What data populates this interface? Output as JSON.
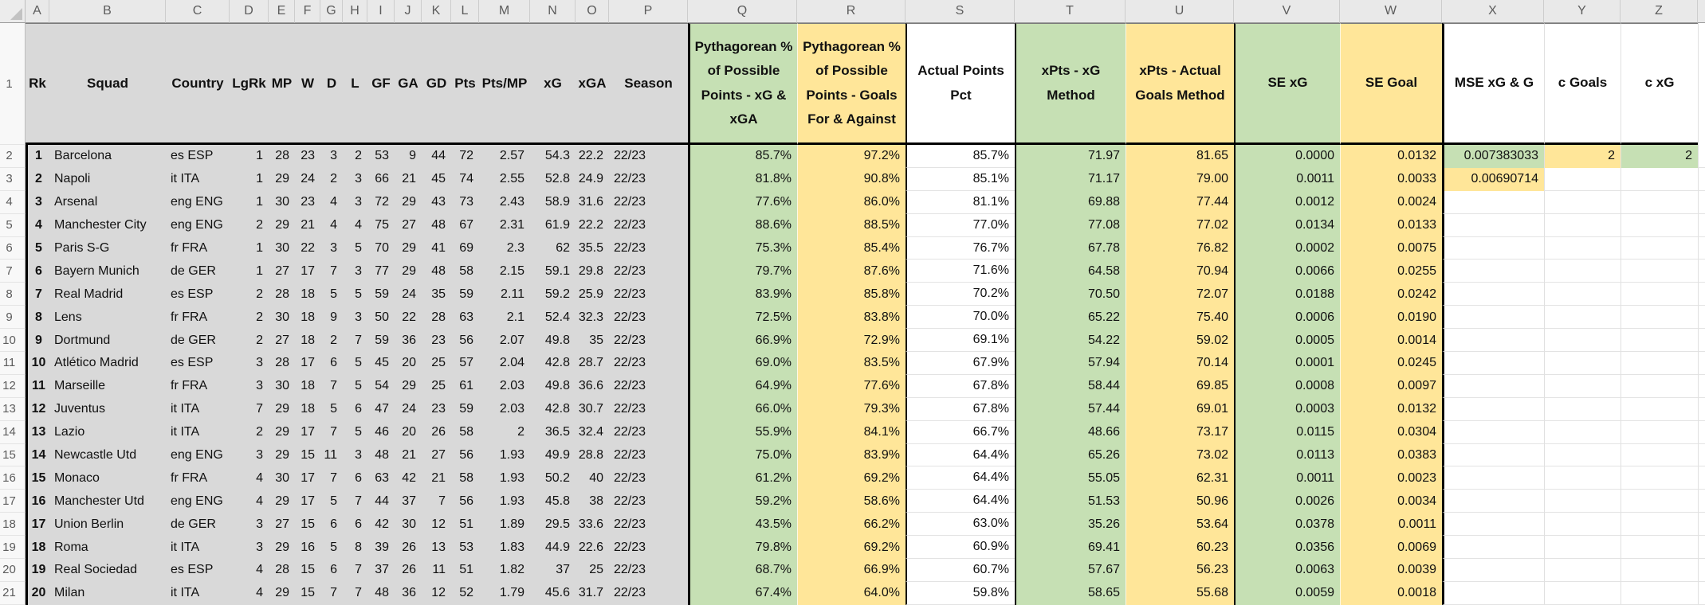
{
  "palette": {
    "green": "#c6e0b4",
    "yellow": "#ffe699",
    "gray": "#d9d9d9",
    "white": "#ffffff",
    "grid_black": "#000000"
  },
  "icons": {
    "select_all": "select-all-triangle"
  },
  "sheet": {
    "row_numbers": [
      "1",
      "2",
      "3",
      "4",
      "5",
      "6",
      "7",
      "8",
      "9",
      "10",
      "11",
      "12",
      "13",
      "14",
      "15",
      "16",
      "17",
      "18",
      "19",
      "20",
      "21"
    ],
    "columns": [
      {
        "letter": "A",
        "header": "Rk"
      },
      {
        "letter": "B",
        "header": "Squad"
      },
      {
        "letter": "C",
        "header": "Country"
      },
      {
        "letter": "D",
        "header": "LgRk"
      },
      {
        "letter": "E",
        "header": "MP"
      },
      {
        "letter": "F",
        "header": "W"
      },
      {
        "letter": "G",
        "header": "D"
      },
      {
        "letter": "H",
        "header": "L"
      },
      {
        "letter": "I",
        "header": "GF"
      },
      {
        "letter": "J",
        "header": "GA"
      },
      {
        "letter": "K",
        "header": "GD"
      },
      {
        "letter": "L",
        "header": "Pts"
      },
      {
        "letter": "M",
        "header": "Pts/MP"
      },
      {
        "letter": "N",
        "header": "xG"
      },
      {
        "letter": "O",
        "header": "xGA"
      },
      {
        "letter": "P",
        "header": "Season"
      },
      {
        "letter": "Q",
        "header": "Pythagorean % of Possible Points - xG & xGA"
      },
      {
        "letter": "R",
        "header": "Pythagorean % of Possible Points - Goals For & Against"
      },
      {
        "letter": "S",
        "header": "Actual Points Pct"
      },
      {
        "letter": "T",
        "header": "xPts - xG Method"
      },
      {
        "letter": "U",
        "header": "xPts - Actual Goals Method"
      },
      {
        "letter": "V",
        "header": "SE xG"
      },
      {
        "letter": "W",
        "header": "SE Goal"
      },
      {
        "letter": "X",
        "header": "MSE xG & G"
      },
      {
        "letter": "Y",
        "header": "c Goals"
      },
      {
        "letter": "Z",
        "header": "c xG"
      }
    ]
  },
  "rows": [
    {
      "rk": "1",
      "squad": "Barcelona",
      "country": "es ESP",
      "lgrk": "1",
      "mp": "28",
      "w": "23",
      "d": "3",
      "l": "2",
      "gf": "53",
      "ga": "9",
      "gd": "44",
      "pts": "72",
      "pts_mp": "2.57",
      "xg": "54.3",
      "xga": "22.2",
      "season": "22/23",
      "pyth_xg": "85.7%",
      "pyth_goals": "97.2%",
      "actual_pct": "85.7%",
      "xpts_xg": "71.97",
      "xpts_goals": "81.65",
      "se_xg": "0.0000",
      "se_goal": "0.0132",
      "mse": "0.007383033",
      "c_goals": "2",
      "c_xg": "2",
      "fills": {
        "mse": "green",
        "c_goals": "yellow",
        "c_xg": "green"
      }
    },
    {
      "rk": "2",
      "squad": "Napoli",
      "country": "it ITA",
      "lgrk": "1",
      "mp": "29",
      "w": "24",
      "d": "2",
      "l": "3",
      "gf": "66",
      "ga": "21",
      "gd": "45",
      "pts": "74",
      "pts_mp": "2.55",
      "xg": "52.8",
      "xga": "24.9",
      "season": "22/23",
      "pyth_xg": "81.8%",
      "pyth_goals": "90.8%",
      "actual_pct": "85.1%",
      "xpts_xg": "71.17",
      "xpts_goals": "79.00",
      "se_xg": "0.0011",
      "se_goal": "0.0033",
      "mse": "0.00690714",
      "c_goals": "",
      "c_xg": "",
      "fills": {
        "mse": "yellow"
      }
    },
    {
      "rk": "3",
      "squad": "Arsenal",
      "country": "eng ENG",
      "lgrk": "1",
      "mp": "30",
      "w": "23",
      "d": "4",
      "l": "3",
      "gf": "72",
      "ga": "29",
      "gd": "43",
      "pts": "73",
      "pts_mp": "2.43",
      "xg": "58.9",
      "xga": "31.6",
      "season": "22/23",
      "pyth_xg": "77.6%",
      "pyth_goals": "86.0%",
      "actual_pct": "81.1%",
      "xpts_xg": "69.88",
      "xpts_goals": "77.44",
      "se_xg": "0.0012",
      "se_goal": "0.0024",
      "mse": "",
      "c_goals": "",
      "c_xg": ""
    },
    {
      "rk": "4",
      "squad": "Manchester City",
      "country": "eng ENG",
      "lgrk": "2",
      "mp": "29",
      "w": "21",
      "d": "4",
      "l": "4",
      "gf": "75",
      "ga": "27",
      "gd": "48",
      "pts": "67",
      "pts_mp": "2.31",
      "xg": "61.9",
      "xga": "22.2",
      "season": "22/23",
      "pyth_xg": "88.6%",
      "pyth_goals": "88.5%",
      "actual_pct": "77.0%",
      "xpts_xg": "77.08",
      "xpts_goals": "77.02",
      "se_xg": "0.0134",
      "se_goal": "0.0133",
      "mse": "",
      "c_goals": "",
      "c_xg": ""
    },
    {
      "rk": "5",
      "squad": "Paris S-G",
      "country": "fr FRA",
      "lgrk": "1",
      "mp": "30",
      "w": "22",
      "d": "3",
      "l": "5",
      "gf": "70",
      "ga": "29",
      "gd": "41",
      "pts": "69",
      "pts_mp": "2.3",
      "xg": "62",
      "xga": "35.5",
      "season": "22/23",
      "pyth_xg": "75.3%",
      "pyth_goals": "85.4%",
      "actual_pct": "76.7%",
      "xpts_xg": "67.78",
      "xpts_goals": "76.82",
      "se_xg": "0.0002",
      "se_goal": "0.0075",
      "mse": "",
      "c_goals": "",
      "c_xg": ""
    },
    {
      "rk": "6",
      "squad": "Bayern Munich",
      "country": "de GER",
      "lgrk": "1",
      "mp": "27",
      "w": "17",
      "d": "7",
      "l": "3",
      "gf": "77",
      "ga": "29",
      "gd": "48",
      "pts": "58",
      "pts_mp": "2.15",
      "xg": "59.1",
      "xga": "29.8",
      "season": "22/23",
      "pyth_xg": "79.7%",
      "pyth_goals": "87.6%",
      "actual_pct": "71.6%",
      "xpts_xg": "64.58",
      "xpts_goals": "70.94",
      "se_xg": "0.0066",
      "se_goal": "0.0255",
      "mse": "",
      "c_goals": "",
      "c_xg": ""
    },
    {
      "rk": "7",
      "squad": "Real Madrid",
      "country": "es ESP",
      "lgrk": "2",
      "mp": "28",
      "w": "18",
      "d": "5",
      "l": "5",
      "gf": "59",
      "ga": "24",
      "gd": "35",
      "pts": "59",
      "pts_mp": "2.11",
      "xg": "59.2",
      "xga": "25.9",
      "season": "22/23",
      "pyth_xg": "83.9%",
      "pyth_goals": "85.8%",
      "actual_pct": "70.2%",
      "xpts_xg": "70.50",
      "xpts_goals": "72.07",
      "se_xg": "0.0188",
      "se_goal": "0.0242",
      "mse": "",
      "c_goals": "",
      "c_xg": ""
    },
    {
      "rk": "8",
      "squad": "Lens",
      "country": "fr FRA",
      "lgrk": "2",
      "mp": "30",
      "w": "18",
      "d": "9",
      "l": "3",
      "gf": "50",
      "ga": "22",
      "gd": "28",
      "pts": "63",
      "pts_mp": "2.1",
      "xg": "52.4",
      "xga": "32.3",
      "season": "22/23",
      "pyth_xg": "72.5%",
      "pyth_goals": "83.8%",
      "actual_pct": "70.0%",
      "xpts_xg": "65.22",
      "xpts_goals": "75.40",
      "se_xg": "0.0006",
      "se_goal": "0.0190",
      "mse": "",
      "c_goals": "",
      "c_xg": ""
    },
    {
      "rk": "9",
      "squad": "Dortmund",
      "country": "de GER",
      "lgrk": "2",
      "mp": "27",
      "w": "18",
      "d": "2",
      "l": "7",
      "gf": "59",
      "ga": "36",
      "gd": "23",
      "pts": "56",
      "pts_mp": "2.07",
      "xg": "49.8",
      "xga": "35",
      "season": "22/23",
      "pyth_xg": "66.9%",
      "pyth_goals": "72.9%",
      "actual_pct": "69.1%",
      "xpts_xg": "54.22",
      "xpts_goals": "59.02",
      "se_xg": "0.0005",
      "se_goal": "0.0014",
      "mse": "",
      "c_goals": "",
      "c_xg": ""
    },
    {
      "rk": "10",
      "squad": "Atlético Madrid",
      "country": "es ESP",
      "lgrk": "3",
      "mp": "28",
      "w": "17",
      "d": "6",
      "l": "5",
      "gf": "45",
      "ga": "20",
      "gd": "25",
      "pts": "57",
      "pts_mp": "2.04",
      "xg": "42.8",
      "xga": "28.7",
      "season": "22/23",
      "pyth_xg": "69.0%",
      "pyth_goals": "83.5%",
      "actual_pct": "67.9%",
      "xpts_xg": "57.94",
      "xpts_goals": "70.14",
      "se_xg": "0.0001",
      "se_goal": "0.0245",
      "mse": "",
      "c_goals": "",
      "c_xg": ""
    },
    {
      "rk": "11",
      "squad": "Marseille",
      "country": "fr FRA",
      "lgrk": "3",
      "mp": "30",
      "w": "18",
      "d": "7",
      "l": "5",
      "gf": "54",
      "ga": "29",
      "gd": "25",
      "pts": "61",
      "pts_mp": "2.03",
      "xg": "49.8",
      "xga": "36.6",
      "season": "22/23",
      "pyth_xg": "64.9%",
      "pyth_goals": "77.6%",
      "actual_pct": "67.8%",
      "xpts_xg": "58.44",
      "xpts_goals": "69.85",
      "se_xg": "0.0008",
      "se_goal": "0.0097",
      "mse": "",
      "c_goals": "",
      "c_xg": ""
    },
    {
      "rk": "12",
      "squad": "Juventus",
      "country": "it ITA",
      "lgrk": "7",
      "mp": "29",
      "w": "18",
      "d": "5",
      "l": "6",
      "gf": "47",
      "ga": "24",
      "gd": "23",
      "pts": "59",
      "pts_mp": "2.03",
      "xg": "42.8",
      "xga": "30.7",
      "season": "22/23",
      "pyth_xg": "66.0%",
      "pyth_goals": "79.3%",
      "actual_pct": "67.8%",
      "xpts_xg": "57.44",
      "xpts_goals": "69.01",
      "se_xg": "0.0003",
      "se_goal": "0.0132",
      "mse": "",
      "c_goals": "",
      "c_xg": ""
    },
    {
      "rk": "13",
      "squad": "Lazio",
      "country": "it ITA",
      "lgrk": "2",
      "mp": "29",
      "w": "17",
      "d": "7",
      "l": "5",
      "gf": "46",
      "ga": "20",
      "gd": "26",
      "pts": "58",
      "pts_mp": "2",
      "xg": "36.5",
      "xga": "32.4",
      "season": "22/23",
      "pyth_xg": "55.9%",
      "pyth_goals": "84.1%",
      "actual_pct": "66.7%",
      "xpts_xg": "48.66",
      "xpts_goals": "73.17",
      "se_xg": "0.0115",
      "se_goal": "0.0304",
      "mse": "",
      "c_goals": "",
      "c_xg": ""
    },
    {
      "rk": "14",
      "squad": "Newcastle Utd",
      "country": "eng ENG",
      "lgrk": "3",
      "mp": "29",
      "w": "15",
      "d": "11",
      "l": "3",
      "gf": "48",
      "ga": "21",
      "gd": "27",
      "pts": "56",
      "pts_mp": "1.93",
      "xg": "49.9",
      "xga": "28.8",
      "season": "22/23",
      "pyth_xg": "75.0%",
      "pyth_goals": "83.9%",
      "actual_pct": "64.4%",
      "xpts_xg": "65.26",
      "xpts_goals": "73.02",
      "se_xg": "0.0113",
      "se_goal": "0.0383",
      "mse": "",
      "c_goals": "",
      "c_xg": ""
    },
    {
      "rk": "15",
      "squad": "Monaco",
      "country": "fr FRA",
      "lgrk": "4",
      "mp": "30",
      "w": "17",
      "d": "7",
      "l": "6",
      "gf": "63",
      "ga": "42",
      "gd": "21",
      "pts": "58",
      "pts_mp": "1.93",
      "xg": "50.2",
      "xga": "40",
      "season": "22/23",
      "pyth_xg": "61.2%",
      "pyth_goals": "69.2%",
      "actual_pct": "64.4%",
      "xpts_xg": "55.05",
      "xpts_goals": "62.31",
      "se_xg": "0.0011",
      "se_goal": "0.0023",
      "mse": "",
      "c_goals": "",
      "c_xg": ""
    },
    {
      "rk": "16",
      "squad": "Manchester Utd",
      "country": "eng ENG",
      "lgrk": "4",
      "mp": "29",
      "w": "17",
      "d": "5",
      "l": "7",
      "gf": "44",
      "ga": "37",
      "gd": "7",
      "pts": "56",
      "pts_mp": "1.93",
      "xg": "45.8",
      "xga": "38",
      "season": "22/23",
      "pyth_xg": "59.2%",
      "pyth_goals": "58.6%",
      "actual_pct": "64.4%",
      "xpts_xg": "51.53",
      "xpts_goals": "50.96",
      "se_xg": "0.0026",
      "se_goal": "0.0034",
      "mse": "",
      "c_goals": "",
      "c_xg": ""
    },
    {
      "rk": "17",
      "squad": "Union Berlin",
      "country": "de GER",
      "lgrk": "3",
      "mp": "27",
      "w": "15",
      "d": "6",
      "l": "6",
      "gf": "42",
      "ga": "30",
      "gd": "12",
      "pts": "51",
      "pts_mp": "1.89",
      "xg": "29.5",
      "xga": "33.6",
      "season": "22/23",
      "pyth_xg": "43.5%",
      "pyth_goals": "66.2%",
      "actual_pct": "63.0%",
      "xpts_xg": "35.26",
      "xpts_goals": "53.64",
      "se_xg": "0.0378",
      "se_goal": "0.0011",
      "mse": "",
      "c_goals": "",
      "c_xg": ""
    },
    {
      "rk": "18",
      "squad": "Roma",
      "country": "it ITA",
      "lgrk": "3",
      "mp": "29",
      "w": "16",
      "d": "5",
      "l": "8",
      "gf": "39",
      "ga": "26",
      "gd": "13",
      "pts": "53",
      "pts_mp": "1.83",
      "xg": "44.9",
      "xga": "22.6",
      "season": "22/23",
      "pyth_xg": "79.8%",
      "pyth_goals": "69.2%",
      "actual_pct": "60.9%",
      "xpts_xg": "69.41",
      "xpts_goals": "60.23",
      "se_xg": "0.0356",
      "se_goal": "0.0069",
      "mse": "",
      "c_goals": "",
      "c_xg": ""
    },
    {
      "rk": "19",
      "squad": "Real Sociedad",
      "country": "es ESP",
      "lgrk": "4",
      "mp": "28",
      "w": "15",
      "d": "6",
      "l": "7",
      "gf": "37",
      "ga": "26",
      "gd": "11",
      "pts": "51",
      "pts_mp": "1.82",
      "xg": "37",
      "xga": "25",
      "season": "22/23",
      "pyth_xg": "68.7%",
      "pyth_goals": "66.9%",
      "actual_pct": "60.7%",
      "xpts_xg": "57.67",
      "xpts_goals": "56.23",
      "se_xg": "0.0063",
      "se_goal": "0.0039",
      "mse": "",
      "c_goals": "",
      "c_xg": ""
    },
    {
      "rk": "20",
      "squad": "Milan",
      "country": "it ITA",
      "lgrk": "4",
      "mp": "29",
      "w": "15",
      "d": "7",
      "l": "7",
      "gf": "48",
      "ga": "36",
      "gd": "12",
      "pts": "52",
      "pts_mp": "1.79",
      "xg": "45.6",
      "xga": "31.7",
      "season": "22/23",
      "pyth_xg": "67.4%",
      "pyth_goals": "64.0%",
      "actual_pct": "59.8%",
      "xpts_xg": "58.65",
      "xpts_goals": "55.68",
      "se_xg": "0.0059",
      "se_goal": "0.0018",
      "mse": "",
      "c_goals": "",
      "c_xg": ""
    }
  ]
}
